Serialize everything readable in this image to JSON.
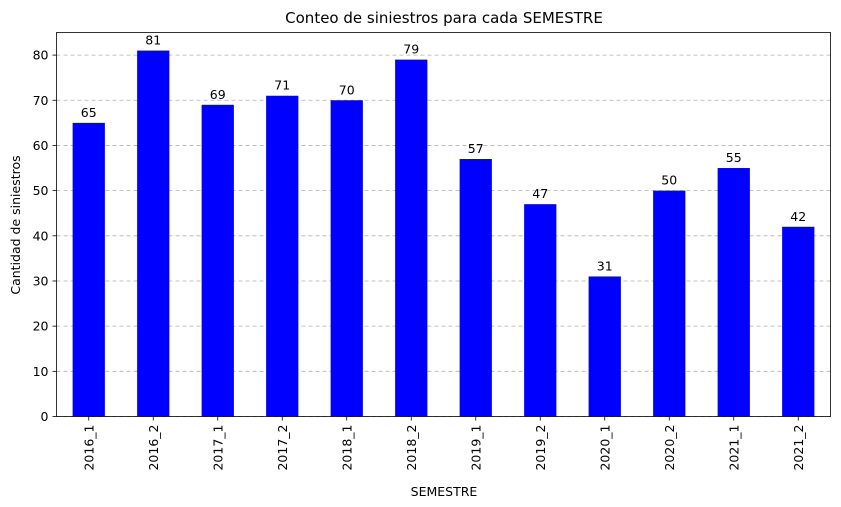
{
  "chart_data": {
    "type": "bar",
    "title": "Conteo de siniestros para cada SEMESTRE",
    "xlabel": "SEMESTRE",
    "ylabel": "Cantidad de siniestros",
    "categories": [
      "2016_1",
      "2016_2",
      "2017_1",
      "2017_2",
      "2018_1",
      "2018_2",
      "2019_1",
      "2019_2",
      "2020_1",
      "2020_2",
      "2021_1",
      "2021_2"
    ],
    "values": [
      65,
      81,
      69,
      71,
      70,
      79,
      57,
      47,
      31,
      50,
      55,
      42
    ],
    "ylim": [
      0,
      85
    ],
    "yticks": [
      0,
      10,
      20,
      30,
      40,
      50,
      60,
      70,
      80
    ],
    "grid": "y, dashed",
    "legend": "none",
    "bar_color": "#0000ff"
  }
}
